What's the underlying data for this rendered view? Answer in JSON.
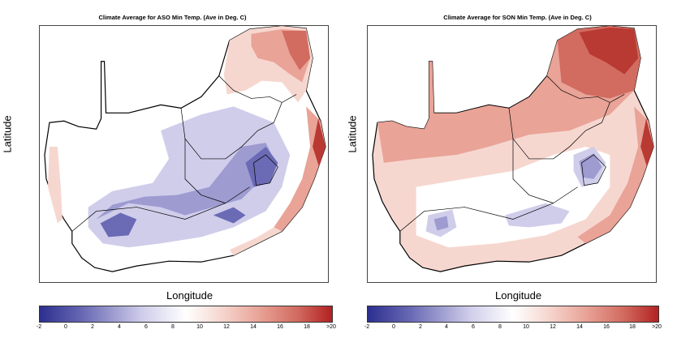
{
  "panels": [
    {
      "title": "Climate Average for ASO Min Temp. (Ave in Deg. C)",
      "xlabel": "Longitude",
      "ylabel": "Latitude",
      "colorbar_ticks": [
        "-2",
        "0",
        "2",
        "4",
        "6",
        "8",
        "10",
        "12",
        "14",
        "16",
        "18",
        ">20"
      ]
    },
    {
      "title": "Climate Average for SON Min Temp. (Ave in Deg. C)",
      "xlabel": "Longitude",
      "ylabel": "Latitude",
      "colorbar_ticks": [
        "-2",
        "0",
        "2",
        "4",
        "6",
        "8",
        "10",
        "12",
        "14",
        "16",
        "18",
        ">20"
      ]
    }
  ],
  "colorbar": {
    "low_color": "#2c2f8f",
    "mid_color": "#ffffff",
    "high_color": "#b22222"
  },
  "map_colors": {
    "cold_dark": "#6a6ab5",
    "cold_mid": "#9d9bd0",
    "cold_light": "#cfcdea",
    "warm_light": "#f6d7d0",
    "warm_mid": "#e9a397",
    "warm_dark": "#d26b60",
    "warm_darkest": "#b83a33"
  }
}
